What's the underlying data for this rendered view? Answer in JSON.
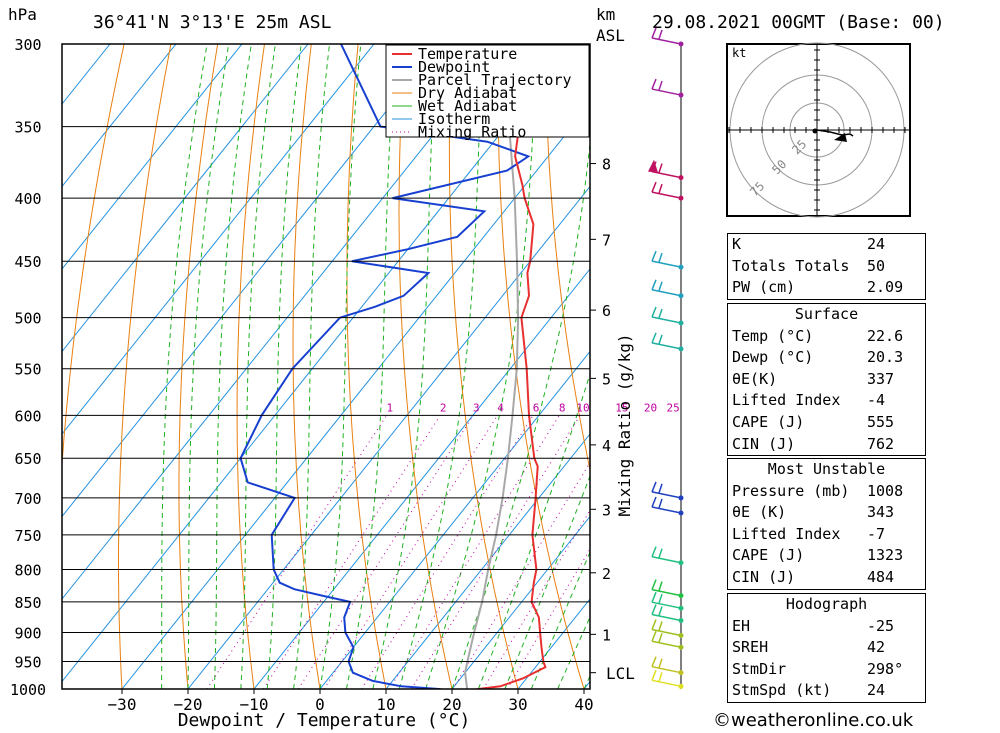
{
  "header": {
    "pressure_unit": "hPa",
    "location": "36°41'N  3°13'E  25m  ASL",
    "km_label": "km",
    "asl_label": "ASL",
    "datetime": "29.08.2021  00GMT  (Base: 00)"
  },
  "chart_data": {
    "type": "skew-t",
    "xlabel": "Dewpoint / Temperature (°C)",
    "ylabel_right": "Mixing Ratio (g/kg)",
    "x_ticks": [
      -30,
      -20,
      -10,
      0,
      10,
      20,
      30,
      40
    ],
    "pressure_levels": [
      300,
      350,
      400,
      450,
      500,
      550,
      600,
      650,
      700,
      750,
      800,
      850,
      900,
      950,
      1000
    ],
    "km_ticks": [
      {
        "label": "1",
        "p": 903
      },
      {
        "label": "2",
        "p": 805
      },
      {
        "label": "3",
        "p": 715
      },
      {
        "label": "4",
        "p": 634
      },
      {
        "label": "5",
        "p": 560
      },
      {
        "label": "6",
        "p": 493
      },
      {
        "label": "7",
        "p": 432
      },
      {
        "label": "8",
        "p": 375
      }
    ],
    "lcl_label": "LCL",
    "lcl_p": 970,
    "mixing_ratio_labels": [
      "1",
      "2",
      "3",
      "4",
      "6",
      "8",
      "10",
      "15",
      "20",
      "25"
    ],
    "mixing_ratio_values": [
      1,
      2,
      3,
      4,
      6,
      8,
      10,
      15,
      20,
      25
    ],
    "legend": [
      "Temperature",
      "Dewpoint",
      "Parcel Trajectory",
      "Dry Adiabat",
      "Wet Adiabat",
      "Isotherm",
      "Mixing Ratio"
    ],
    "series": [
      {
        "name": "Temperature",
        "color": "#e83030",
        "points": [
          [
            1004,
            22.6
          ],
          [
            1000,
            24
          ],
          [
            995,
            27
          ],
          [
            980,
            29.5
          ],
          [
            960,
            31.5
          ],
          [
            950,
            30.5
          ],
          [
            925,
            28.5
          ],
          [
            900,
            26.5
          ],
          [
            875,
            24.5
          ],
          [
            850,
            21.5
          ],
          [
            820,
            19.5
          ],
          [
            800,
            18.3
          ],
          [
            750,
            13.5
          ],
          [
            700,
            9.5
          ],
          [
            660,
            6
          ],
          [
            650,
            4.5
          ],
          [
            600,
            -1.5
          ],
          [
            550,
            -7.5
          ],
          [
            500,
            -14.5
          ],
          [
            480,
            -16
          ],
          [
            460,
            -19
          ],
          [
            450,
            -20
          ],
          [
            420,
            -24
          ],
          [
            400,
            -28.5
          ],
          [
            390,
            -30.5
          ],
          [
            370,
            -35
          ],
          [
            350,
            -38
          ],
          [
            340,
            -40.5
          ],
          [
            320,
            -44.5
          ],
          [
            300,
            -50
          ]
        ]
      },
      {
        "name": "Dewpoint",
        "color": "#1840d0",
        "points": [
          [
            1004,
            20.3
          ],
          [
            1000,
            18
          ],
          [
            995,
            12
          ],
          [
            985,
            7
          ],
          [
            970,
            3
          ],
          [
            950,
            1
          ],
          [
            925,
            0
          ],
          [
            900,
            -3
          ],
          [
            875,
            -5
          ],
          [
            850,
            -6
          ],
          [
            840,
            -11
          ],
          [
            830,
            -16
          ],
          [
            820,
            -19
          ],
          [
            800,
            -21.5
          ],
          [
            750,
            -26
          ],
          [
            700,
            -27
          ],
          [
            680,
            -36
          ],
          [
            650,
            -40
          ],
          [
            600,
            -42
          ],
          [
            550,
            -43
          ],
          [
            500,
            -42
          ],
          [
            490,
            -38
          ],
          [
            480,
            -35
          ],
          [
            460,
            -34
          ],
          [
            450,
            -47
          ],
          [
            440,
            -40
          ],
          [
            430,
            -34
          ],
          [
            410,
            -33
          ],
          [
            400,
            -48.5
          ],
          [
            380,
            -34.5
          ],
          [
            370,
            -33
          ],
          [
            360,
            -41
          ],
          [
            350,
            -59
          ],
          [
            300,
            -75
          ]
        ]
      },
      {
        "name": "Parcel Trajectory",
        "color": "#a8a8a8",
        "points": [
          [
            1004,
            22.6
          ],
          [
            970,
            20
          ],
          [
            950,
            19
          ],
          [
            900,
            16.5
          ],
          [
            850,
            14
          ],
          [
            800,
            11
          ],
          [
            750,
            8
          ],
          [
            700,
            4.5
          ],
          [
            650,
            0.5
          ],
          [
            600,
            -4
          ],
          [
            550,
            -9
          ],
          [
            500,
            -15
          ],
          [
            450,
            -22
          ],
          [
            400,
            -30
          ],
          [
            350,
            -39.5
          ],
          [
            300,
            -51
          ]
        ]
      }
    ],
    "hodograph_rings": [
      "25",
      "50",
      "75"
    ],
    "hodograph_unit": "kt"
  },
  "indices": {
    "k_label": "K",
    "k_value": "24",
    "tt_label": "Totals Totals",
    "tt_value": "50",
    "pw_label": "PW (cm)",
    "pw_value": "2.09"
  },
  "surface": {
    "title": "Surface",
    "temp_label": "Temp (°C)",
    "temp_value": "22.6",
    "dewp_label": "Dewp (°C)",
    "dewp_value": "20.3",
    "theta_label": "θE(K)",
    "theta_value": "337",
    "li_label": "Lifted Index",
    "li_value": "-4",
    "cape_label": "CAPE (J)",
    "cape_value": "555",
    "cin_label": "CIN (J)",
    "cin_value": "762"
  },
  "most_unstable": {
    "title": "Most Unstable",
    "pressure_label": "Pressure (mb)",
    "pressure_value": "1008",
    "theta_label": "θE (K)",
    "theta_value": "343",
    "li_label": "Lifted Index",
    "li_value": "-7",
    "cape_label": "CAPE (J)",
    "cape_value": "1323",
    "cin_label": "CIN (J)",
    "cin_value": "484"
  },
  "hodograph_table": {
    "title": "Hodograph",
    "eh_label": "EH",
    "eh_value": "-25",
    "sreh_label": "SREH",
    "sreh_value": "42",
    "stmdir_label": "StmDir",
    "stmdir_value": "298°",
    "stmspd_label": "StmSpd (kt)",
    "stmspd_value": "24"
  },
  "footer": {
    "copyright": "©weatheronline.co.uk"
  },
  "colors": {
    "temperature": "#e83030",
    "dewpoint": "#1840d0",
    "parcel": "#a8a8a8",
    "dry_adiabat": "#e88010",
    "wet_adiabat": "#20b020",
    "isotherm": "#2090e0",
    "mixing_ratio": "#c000a0"
  }
}
